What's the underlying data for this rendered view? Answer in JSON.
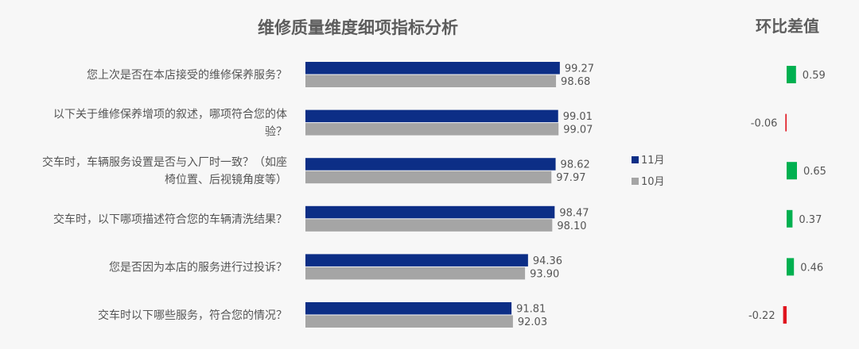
{
  "chart_data": [
    {
      "type": "bar",
      "orientation": "horizontal",
      "title": "维修质量维度细项指标分析",
      "categories": [
        [
          "您上次是否在本店接受的维修保养服务？"
        ],
        [
          "以下关于维修保养增项的叙述，哪项符合您的体",
          "验？"
        ],
        [
          "交车时，车辆服务设置是否与入厂时一致？（如座",
          "椅位置、后视镜角度等）"
        ],
        [
          "交车时，以下哪项描述符合您的车辆清洗结果？"
        ],
        [
          "您是否因为本店的服务进行过投诉？"
        ],
        [
          "交车时以下哪些服务，符合您的情况？"
        ]
      ],
      "series": [
        {
          "name": "11月",
          "color": "#0c2e86",
          "values": [
            99.27,
            99.01,
            98.62,
            98.47,
            94.36,
            91.81
          ]
        },
        {
          "name": "10月",
          "color": "#a5a5a5",
          "values": [
            98.68,
            99.07,
            97.97,
            98.1,
            93.9,
            92.03
          ]
        }
      ],
      "value_labels": {
        "11月": [
          "99.27",
          "99.01",
          "98.62",
          "98.47",
          "94.36",
          "91.81"
        ],
        "10月": [
          "98.68",
          "99.07",
          "97.97",
          "98.10",
          "93.90",
          "92.03"
        ]
      },
      "xlim": [
        60,
        100
      ],
      "grid": false,
      "legend_position": "right"
    },
    {
      "type": "bar",
      "orientation": "horizontal",
      "title": "环比差值",
      "values": [
        0.59,
        -0.06,
        0.65,
        0.37,
        0.46,
        -0.22
      ],
      "labels": [
        "0.59",
        "-0.06",
        "0.65",
        "0.37",
        "0.46",
        "-0.22"
      ],
      "xlim": [
        -1.5,
        1.5
      ],
      "positive_color": "#00b050",
      "negative_color": "#e0141e",
      "grid": false
    }
  ]
}
